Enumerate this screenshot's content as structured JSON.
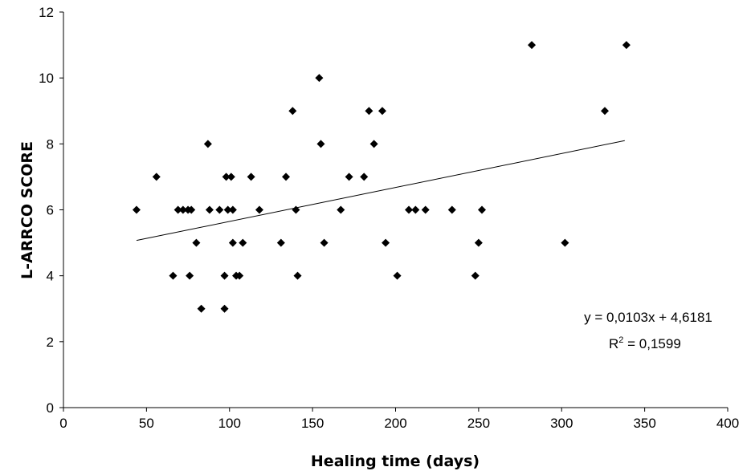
{
  "chart_data": {
    "type": "scatter",
    "xlabel": "Healing time (days)",
    "ylabel": "L-ARRCO SCORE",
    "xlim": [
      0,
      400
    ],
    "ylim": [
      0,
      12
    ],
    "x_ticks": [
      "0",
      "50",
      "100",
      "150",
      "200",
      "250",
      "300",
      "350",
      "400"
    ],
    "y_ticks": [
      "0",
      "2",
      "4",
      "6",
      "8",
      "10",
      "12"
    ],
    "grid": false,
    "marker": "diamond",
    "marker_color": "#000000",
    "trendline": {
      "type": "linear",
      "slope": 0.0103,
      "intercept": 4.6181,
      "x_range": [
        44,
        338
      ],
      "color": "#000000"
    },
    "annotation": {
      "equation": "y = 0,0103x + 4,6181",
      "r2_prefix": "R",
      "r2_sup": "2",
      "r2_value": " = 0,1599"
    },
    "points": [
      [
        44,
        6
      ],
      [
        56,
        7
      ],
      [
        66,
        4
      ],
      [
        69,
        6
      ],
      [
        72,
        6
      ],
      [
        75,
        6
      ],
      [
        77,
        6
      ],
      [
        76,
        4
      ],
      [
        80,
        5
      ],
      [
        83,
        3
      ],
      [
        87,
        8
      ],
      [
        88,
        6
      ],
      [
        94,
        6
      ],
      [
        97,
        4
      ],
      [
        97,
        3
      ],
      [
        98,
        7
      ],
      [
        99,
        6
      ],
      [
        101,
        7
      ],
      [
        102,
        6
      ],
      [
        102,
        5
      ],
      [
        104,
        4
      ],
      [
        106,
        4
      ],
      [
        108,
        5
      ],
      [
        113,
        7
      ],
      [
        118,
        6
      ],
      [
        131,
        5
      ],
      [
        134,
        7
      ],
      [
        138,
        9
      ],
      [
        140,
        6
      ],
      [
        141,
        4
      ],
      [
        154,
        10
      ],
      [
        155,
        8
      ],
      [
        157,
        5
      ],
      [
        167,
        6
      ],
      [
        172,
        7
      ],
      [
        181,
        7
      ],
      [
        184,
        9
      ],
      [
        187,
        8
      ],
      [
        192,
        9
      ],
      [
        194,
        5
      ],
      [
        201,
        4
      ],
      [
        208,
        6
      ],
      [
        212,
        6
      ],
      [
        218,
        6
      ],
      [
        234,
        6
      ],
      [
        248,
        4
      ],
      [
        250,
        5
      ],
      [
        252,
        6
      ],
      [
        282,
        11
      ],
      [
        302,
        5
      ],
      [
        326,
        9
      ],
      [
        339,
        11
      ]
    ]
  }
}
